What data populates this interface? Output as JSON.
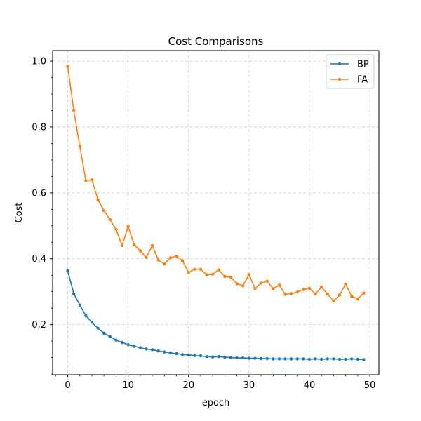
{
  "chart_data": {
    "type": "line",
    "title": "Cost Comparisons",
    "xlabel": "epoch",
    "ylabel": "Cost",
    "xlim": [
      -2.5,
      51.5
    ],
    "ylim": [
      0.048,
      1.032
    ],
    "xticks": [
      0,
      10,
      20,
      30,
      40,
      50
    ],
    "yticks": [
      0.2,
      0.4,
      0.6,
      0.8,
      1.0
    ],
    "xtick_labels": [
      "0",
      "10",
      "20",
      "30",
      "40",
      "50"
    ],
    "ytick_labels": [
      "0.2",
      "0.4",
      "0.6",
      "0.8",
      "1.0"
    ],
    "grid": true,
    "legend_position": "top-right",
    "x": [
      0,
      1,
      2,
      3,
      4,
      5,
      6,
      7,
      8,
      9,
      10,
      11,
      12,
      13,
      14,
      15,
      16,
      17,
      18,
      19,
      20,
      21,
      22,
      23,
      24,
      25,
      26,
      27,
      28,
      29,
      30,
      31,
      32,
      33,
      34,
      35,
      36,
      37,
      38,
      39,
      40,
      41,
      42,
      43,
      44,
      45,
      46,
      47,
      48,
      49
    ],
    "series": [
      {
        "name": "BP",
        "color": "#1f77b4",
        "values": [
          0.363,
          0.294,
          0.259,
          0.227,
          0.207,
          0.189,
          0.174,
          0.164,
          0.153,
          0.146,
          0.139,
          0.134,
          0.13,
          0.126,
          0.124,
          0.12,
          0.117,
          0.114,
          0.112,
          0.109,
          0.108,
          0.106,
          0.105,
          0.103,
          0.102,
          0.103,
          0.101,
          0.1,
          0.099,
          0.099,
          0.098,
          0.098,
          0.097,
          0.097,
          0.096,
          0.096,
          0.096,
          0.096,
          0.096,
          0.096,
          0.095,
          0.096,
          0.095,
          0.096,
          0.096,
          0.095,
          0.095,
          0.096,
          0.095,
          0.094
        ]
      },
      {
        "name": "FA",
        "color": "#ff7f0e",
        "values": [
          0.984,
          0.85,
          0.741,
          0.637,
          0.64,
          0.579,
          0.546,
          0.519,
          0.489,
          0.44,
          0.498,
          0.442,
          0.424,
          0.404,
          0.44,
          0.396,
          0.384,
          0.403,
          0.408,
          0.394,
          0.358,
          0.368,
          0.368,
          0.351,
          0.353,
          0.366,
          0.346,
          0.344,
          0.324,
          0.318,
          0.352,
          0.309,
          0.326,
          0.332,
          0.309,
          0.32,
          0.292,
          0.294,
          0.299,
          0.307,
          0.31,
          0.293,
          0.314,
          0.293,
          0.272,
          0.29,
          0.323,
          0.286,
          0.278,
          0.296
        ]
      }
    ]
  }
}
